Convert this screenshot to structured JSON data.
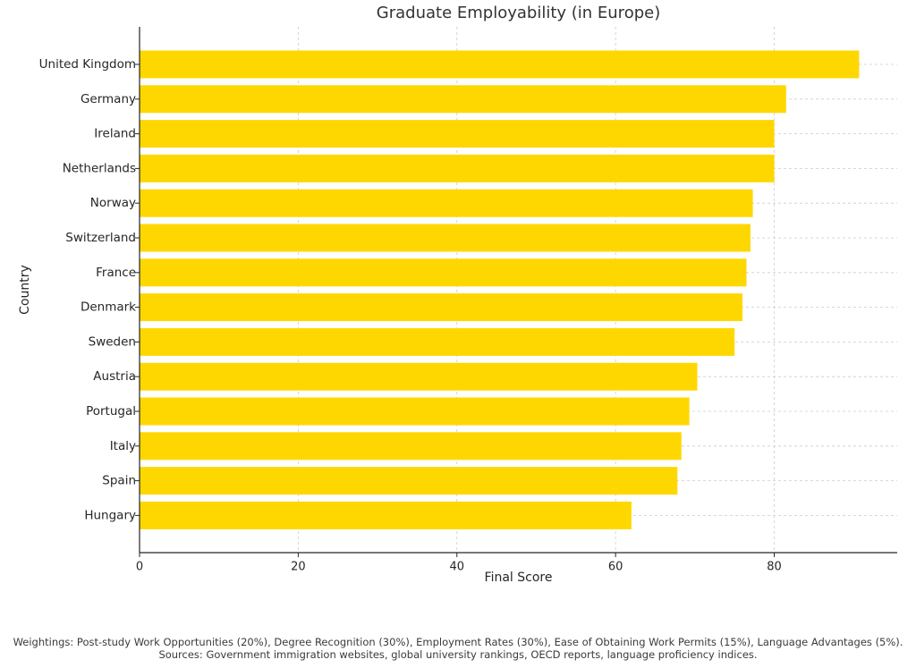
{
  "chart_data": {
    "type": "bar",
    "orientation": "horizontal",
    "title": "Graduate Employability (in Europe)",
    "xlabel": "Final Score",
    "ylabel": "Country",
    "categories": [
      "United Kingdom",
      "Germany",
      "Ireland",
      "Netherlands",
      "Norway",
      "Switzerland",
      "France",
      "Denmark",
      "Sweden",
      "Austria",
      "Portugal",
      "Italy",
      "Spain",
      "Hungary"
    ],
    "values": [
      90.7,
      81.5,
      80.0,
      80.0,
      77.3,
      77.0,
      76.5,
      76.0,
      75.0,
      70.3,
      69.3,
      68.3,
      67.8,
      62.0
    ],
    "xlim": [
      0,
      95.5
    ],
    "xticks": [
      0,
      20,
      40,
      60,
      80
    ],
    "grid": true,
    "bar_color": "#FFD700"
  },
  "footnote": {
    "line1": "Weightings: Post-study Work Opportunities (20%), Degree Recognition (30%), Employment Rates (30%), Ease of Obtaining Work Permits (15%), Language Advantages (5%).",
    "line2": "Sources: Government immigration websites, global university rankings, OECD reports, language proficiency indices."
  }
}
